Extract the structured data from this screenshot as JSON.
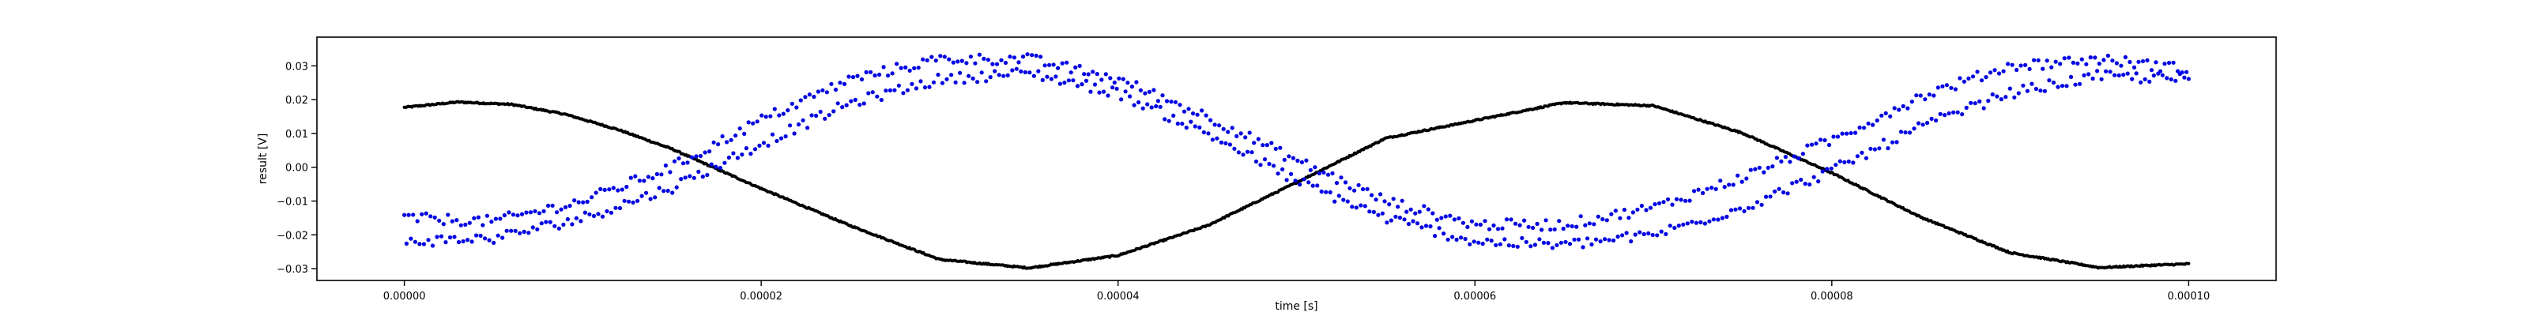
{
  "chart_data": {
    "type": "scatter",
    "title": "",
    "xlabel": "time [s]",
    "ylabel": "result [V]",
    "xlim": [
      -4.9e-06,
      0.0001049
    ],
    "ylim": [
      -0.0335,
      0.0385
    ],
    "xticks": [
      0,
      2e-05,
      4e-05,
      6e-05,
      8e-05,
      0.0001
    ],
    "xtick_labels": [
      "0.00000",
      "0.00002",
      "0.00004",
      "0.00006",
      "0.00008",
      "0.00010"
    ],
    "yticks": [
      -0.03,
      -0.02,
      -0.01,
      0.0,
      0.01,
      0.02,
      0.03
    ],
    "ytick_labels": [
      "−0.03",
      "−0.02",
      "−0.01",
      "0.00",
      "0.01",
      "0.02",
      "0.03"
    ],
    "grid": false,
    "legend": "none",
    "series": [
      {
        "color": "#000000",
        "marker": "small dot",
        "x_start": 0.0,
        "x_end": 0.0001,
        "y": [
          0.0177,
          0.0193,
          0.0186,
          0.0157,
          0.0111,
          0.0054,
          -0.0005,
          -0.0063,
          -0.0173,
          -0.0273,
          -0.0298,
          -0.0261,
          -0.0173,
          -0.0045,
          0.0086,
          0.0191,
          0.0182,
          0.0101,
          -0.0017,
          -0.0148,
          -0.0253,
          -0.0297,
          -0.029,
          -0.0286
        ],
        "x": [
          0.0,
          3e-06,
          6e-06,
          9e-06,
          1.2e-05,
          1.5e-05,
          1.75e-05,
          2e-05,
          2.5e-05,
          3e-05,
          3.5e-05,
          4e-05,
          4.5e-05,
          5e-05,
          5.5e-05,
          6.5e-05,
          7e-05,
          7.5e-05,
          8e-05,
          8.5e-05,
          9e-05,
          9.5e-05,
          9.8e-05,
          0.0001
        ]
      },
      {
        "color": "#0000ff",
        "marker": "dot",
        "x_start": 0.0,
        "x_end": 0.0001,
        "upper_branch": {
          "x": [
            0.0,
            5e-06,
            1e-05,
            1.5e-05,
            2e-05,
            2.5e-05,
            3e-05,
            3.5e-05,
            4e-05,
            4.5e-05,
            5e-05,
            5.5e-05,
            6e-05,
            6.5e-05,
            7e-05,
            7.5e-05,
            8e-05,
            8.5e-05,
            9e-05,
            9.5e-05,
            0.0001
          ],
          "y": [
            -0.015,
            -0.016,
            -0.01,
            0.0,
            0.014,
            0.026,
            0.032,
            0.032,
            0.026,
            0.015,
            0.002,
            -0.01,
            -0.017,
            -0.017,
            -0.012,
            -0.003,
            0.008,
            0.021,
            0.03,
            0.032,
            0.029
          ]
        },
        "lower_branch": {
          "x": [
            0.0,
            5e-06,
            1e-05,
            1.5e-05,
            2e-05,
            2.5e-05,
            3e-05,
            3.5e-05,
            4e-05,
            4.5e-05,
            5e-05,
            5.5e-05,
            6e-05,
            6.5e-05,
            7e-05,
            7.5e-05,
            8e-05,
            8.5e-05,
            9e-05,
            9.5e-05,
            0.0001
          ],
          "y": [
            -0.022,
            -0.021,
            -0.015,
            -0.006,
            0.007,
            0.019,
            0.026,
            0.028,
            0.022,
            0.01,
            -0.004,
            -0.015,
            -0.022,
            -0.023,
            -0.02,
            -0.012,
            -0.001,
            0.012,
            0.022,
            0.027,
            0.026
          ]
        }
      }
    ]
  }
}
